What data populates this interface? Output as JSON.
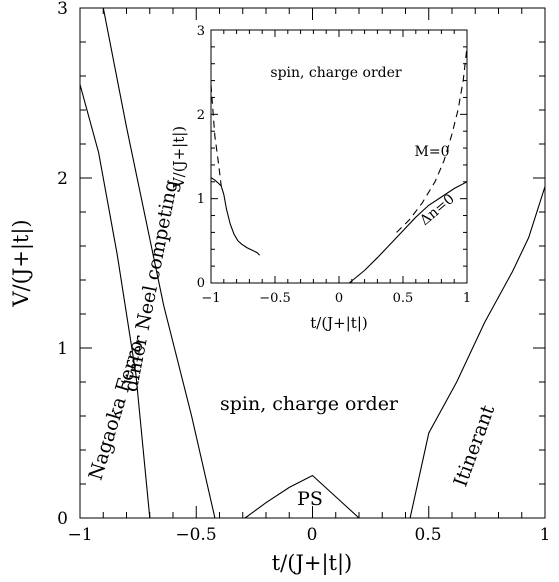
{
  "chart_data": [
    {
      "type": "line",
      "xlabel": "t/(J+|t|)",
      "ylabel": "V/(J+|t|)",
      "xlim": [
        -1,
        1
      ],
      "ylim": [
        0,
        3
      ],
      "x_ticks": [
        "−1",
        "−0.5",
        "0",
        "0.5",
        "1"
      ],
      "y_ticks": [
        "0",
        "1",
        "2",
        "3"
      ],
      "series": [
        {
          "x": [
            -1.0,
            -0.92,
            -0.84,
            -0.76,
            -0.7
          ],
          "y": [
            2.55,
            2.15,
            1.55,
            0.85,
            0.0
          ]
        },
        {
          "x": [
            -0.9,
            -0.8,
            -0.64,
            -0.52,
            -0.42
          ],
          "y": [
            3.0,
            2.3,
            1.25,
            0.6,
            0.0
          ]
        },
        {
          "x": [
            -0.29,
            -0.2,
            -0.1,
            0.0,
            0.12,
            0.2
          ],
          "y": [
            0.0,
            0.09,
            0.18,
            0.25,
            0.1,
            0.0
          ]
        },
        {
          "x": [
            0.42,
            0.5,
            0.62,
            0.74,
            0.86,
            0.93,
            1.0
          ],
          "y": [
            0.0,
            0.5,
            0.8,
            1.15,
            1.45,
            1.65,
            1.95
          ]
        }
      ],
      "labels": {
        "ferro": "Nagaoka Ferro",
        "dimer": "dimer Neel competing",
        "order": "spin, charge order",
        "ps": "PS",
        "itinerant": "Itinerant"
      }
    },
    {
      "type": "line",
      "xlabel": "t/(J+|t|)",
      "ylabel": "V/(J+|t|)",
      "xlim": [
        -1,
        1
      ],
      "ylim": [
        0,
        3
      ],
      "x_ticks": [
        "−1",
        "−0.5",
        "0",
        "0.5",
        "1"
      ],
      "y_ticks": [
        "0",
        "1",
        "2",
        "3"
      ],
      "series": [
        {
          "x": [
            -1.0,
            -0.97,
            -0.94,
            -0.92,
            -0.9,
            -0.88,
            -0.85,
            -0.82,
            -0.79,
            -0.76,
            -0.72,
            -0.68,
            -0.64,
            -0.62
          ],
          "y": [
            1.25,
            1.22,
            1.18,
            1.15,
            1.05,
            0.88,
            0.7,
            0.58,
            0.5,
            0.46,
            0.42,
            0.39,
            0.36,
            0.33
          ]
        },
        {
          "x": [
            0.08,
            0.2,
            0.3,
            0.4,
            0.5,
            0.6,
            0.7,
            0.8,
            0.9,
            1.0
          ],
          "y": [
            0.0,
            0.15,
            0.3,
            0.46,
            0.62,
            0.78,
            0.92,
            1.02,
            1.12,
            1.2
          ]
        },
        {
          "x": [
            -1.0,
            -0.97,
            -0.94,
            -0.92
          ],
          "y": [
            2.35,
            1.75,
            1.4,
            1.15
          ]
        },
        {
          "x": [
            0.45,
            0.55,
            0.65,
            0.75,
            0.82,
            0.88,
            0.93,
            0.97,
            1.0
          ],
          "y": [
            0.6,
            0.75,
            0.95,
            1.2,
            1.45,
            1.75,
            2.05,
            2.4,
            2.8
          ]
        }
      ],
      "labels": {
        "order": "spin, charge order",
        "m": "M=0",
        "dn": "Δn=0"
      }
    }
  ]
}
